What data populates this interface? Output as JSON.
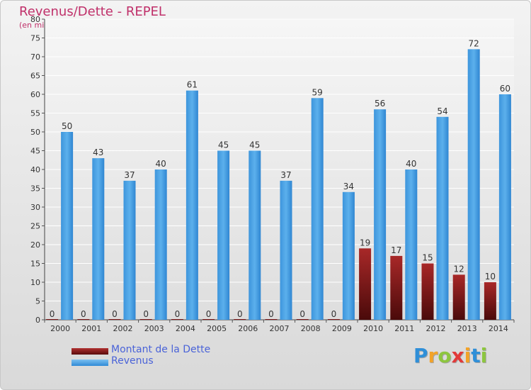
{
  "title": "Revenus/Dette - REPEL",
  "subtitle": "(en milliers d'€)",
  "logo": {
    "letters": [
      "P",
      "r",
      "o",
      "x",
      "i",
      "t",
      "i"
    ],
    "colors": [
      "#2f8fd8",
      "#f2a329",
      "#8dc63f",
      "#e23a3a",
      "#f2a329",
      "#2f8fd8",
      "#8dc63f"
    ]
  },
  "chart_data": {
    "type": "bar",
    "categories": [
      "2000",
      "2001",
      "2002",
      "2003",
      "2004",
      "2005",
      "2006",
      "2007",
      "2008",
      "2009",
      "2010",
      "2011",
      "2012",
      "2013",
      "2014"
    ],
    "series": [
      {
        "name": "Montant de la Dette",
        "color": "#7a1515",
        "values": [
          0,
          0,
          0,
          0,
          0,
          0,
          0,
          0,
          0,
          0,
          19,
          17,
          15,
          12,
          10
        ]
      },
      {
        "name": "Revenus",
        "color": "#4aa3e6",
        "values": [
          50,
          43,
          37,
          40,
          61,
          45,
          45,
          37,
          59,
          34,
          56,
          40,
          54,
          72,
          60
        ]
      }
    ],
    "ylim": [
      0,
      80
    ],
    "yticks": [
      0,
      5,
      10,
      15,
      20,
      25,
      30,
      35,
      40,
      45,
      50,
      55,
      60,
      65,
      70,
      75,
      80
    ],
    "grid": true,
    "legend": "bottom-left"
  }
}
